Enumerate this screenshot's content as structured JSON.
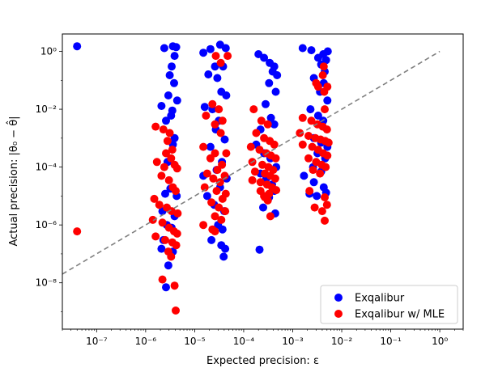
{
  "chart_data": {
    "type": "scatter",
    "xlabel": "Expected precision: ε",
    "ylabel": "Actual precision: |θ₀ − θ̂|",
    "x_scale": "log",
    "y_scale": "log",
    "xlim": [
      2e-08,
      3
    ],
    "ylim": [
      2.5e-10,
      4
    ],
    "x_ticks": [
      {
        "value": 1e-07,
        "label": "10⁻⁷"
      },
      {
        "value": 1e-06,
        "label": "10⁻⁶"
      },
      {
        "value": 1e-05,
        "label": "10⁻⁵"
      },
      {
        "value": 0.0001,
        "label": "10⁻⁴"
      },
      {
        "value": 0.001,
        "label": "10⁻³"
      },
      {
        "value": 0.01,
        "label": "10⁻²"
      },
      {
        "value": 0.1,
        "label": "10⁻¹"
      },
      {
        "value": 1,
        "label": "10⁰"
      }
    ],
    "y_ticks": [
      {
        "value": 1e-08,
        "label": "10⁻⁸"
      },
      {
        "value": 1e-06,
        "label": "10⁻⁶"
      },
      {
        "value": 0.0001,
        "label": "10⁻⁴"
      },
      {
        "value": 0.01,
        "label": "10⁻²"
      },
      {
        "value": 1,
        "label": "10⁰"
      }
    ],
    "grid": false,
    "legend_position": "bottom-right",
    "reference_line": {
      "style": "dashed",
      "color": "#808080",
      "from": [
        2e-08,
        2e-08
      ],
      "to": [
        1,
        1
      ]
    },
    "series": [
      {
        "name": "Exqalibur",
        "color": "#0000ff",
        "points": [
          [
            4e-08,
            1.5
          ],
          [
            3.6e-06,
            1.5
          ],
          [
            2.4e-06,
            1.3
          ],
          [
            4.2e-06,
            1.4
          ],
          [
            3.9e-06,
            0.7
          ],
          [
            3.4e-06,
            0.3
          ],
          [
            3.1e-06,
            0.15
          ],
          [
            3.8e-06,
            0.08
          ],
          [
            2.9e-06,
            0.03
          ],
          [
            4.4e-06,
            0.02
          ],
          [
            2.1e-06,
            0.013
          ],
          [
            3.5e-06,
            0.009
          ],
          [
            3.3e-06,
            0.006
          ],
          [
            2.6e-06,
            0.004
          ],
          [
            3.9e-06,
            0.001
          ],
          [
            3.6e-06,
            0.0006
          ],
          [
            2.8e-06,
            0.00015
          ],
          [
            3.2e-06,
            1.8e-05
          ],
          [
            2.5e-06,
            1.2e-05
          ],
          [
            4.3e-06,
            1e-05
          ],
          [
            2.2e-06,
            3e-06
          ],
          [
            3.9e-06,
            2e-06
          ],
          [
            2.7e-06,
            1e-06
          ],
          [
            3.4e-06,
            8e-07
          ],
          [
            2.3e-06,
            3e-07
          ],
          [
            2.1e-06,
            1.5e-07
          ],
          [
            3.6e-06,
            1.2e-07
          ],
          [
            2.9e-06,
            4e-08
          ],
          [
            2.6e-06,
            7e-09
          ],
          [
            1.5e-05,
            0.9
          ],
          [
            3.3e-05,
            1.7
          ],
          [
            4.3e-05,
            1.3
          ],
          [
            2.1e-05,
            1.2
          ],
          [
            2.6e-05,
            0.3
          ],
          [
            3.8e-05,
            0.3
          ],
          [
            1.9e-05,
            0.16
          ],
          [
            2.9e-05,
            0.12
          ],
          [
            3.5e-05,
            0.04
          ],
          [
            4.4e-05,
            0.03
          ],
          [
            2.3e-05,
            0.01
          ],
          [
            1.6e-05,
            0.012
          ],
          [
            3.1e-05,
            0.004
          ],
          [
            2.7e-05,
            0.002
          ],
          [
            4.1e-05,
            0.0009
          ],
          [
            2.1e-05,
            0.0005
          ],
          [
            3.6e-05,
            0.00015
          ],
          [
            2.8e-05,
            8e-05
          ],
          [
            1.5e-05,
            5e-05
          ],
          [
            4.5e-05,
            4e-05
          ],
          [
            3.3e-05,
            2e-05
          ],
          [
            1.8e-05,
            1e-05
          ],
          [
            2.5e-05,
            5e-06
          ],
          [
            4e-05,
            3e-06
          ],
          [
            3e-05,
            1e-06
          ],
          [
            3.7e-05,
            7e-07
          ],
          [
            2.2e-05,
            3e-07
          ],
          [
            3.5e-05,
            2e-07
          ],
          [
            4.2e-05,
            1.5e-07
          ],
          [
            3.9e-05,
            8e-08
          ],
          [
            0.0002,
            0.8
          ],
          [
            0.00026,
            0.6
          ],
          [
            0.00034,
            0.4
          ],
          [
            0.00042,
            0.3
          ],
          [
            0.00039,
            0.2
          ],
          [
            0.00048,
            0.15
          ],
          [
            0.00033,
            0.08
          ],
          [
            0.00045,
            0.04
          ],
          [
            0.00028,
            0.015
          ],
          [
            0.00036,
            0.005
          ],
          [
            0.00042,
            0.003
          ],
          [
            0.00022,
            0.002
          ],
          [
            0.00018,
            0.0006
          ],
          [
            0.00026,
            0.0003
          ],
          [
            0.00035,
            0.0002
          ],
          [
            0.00046,
            0.0001
          ],
          [
            0.00022,
            6e-05
          ],
          [
            0.00029,
            4e-05
          ],
          [
            0.00038,
            2.5e-05
          ],
          [
            0.00042,
            1.5e-05
          ],
          [
            0.00033,
            9e-06
          ],
          [
            0.00025,
            4e-06
          ],
          [
            0.00044,
            2.5e-06
          ],
          [
            0.00021,
            1.4e-07
          ],
          [
            0.0016,
            1.3
          ],
          [
            0.0024,
            1.1
          ],
          [
            0.0042,
            0.8
          ],
          [
            0.0052,
            1.0
          ],
          [
            0.0033,
            0.6
          ],
          [
            0.0048,
            0.5
          ],
          [
            0.0038,
            0.35
          ],
          [
            0.0045,
            0.2
          ],
          [
            0.0027,
            0.12
          ],
          [
            0.0043,
            0.08
          ],
          [
            0.0036,
            0.04
          ],
          [
            0.0051,
            0.02
          ],
          [
            0.0023,
            0.01
          ],
          [
            0.0033,
            0.006
          ],
          [
            0.0042,
            0.004
          ],
          [
            0.0027,
            0.001
          ],
          [
            0.0038,
            0.0007
          ],
          [
            0.0051,
            0.0005
          ],
          [
            0.0032,
            0.0003
          ],
          [
            0.0046,
            0.0002
          ],
          [
            0.0026,
            0.0001
          ],
          [
            0.0038,
            7e-05
          ],
          [
            0.0017,
            5e-05
          ],
          [
            0.0027,
            3e-05
          ],
          [
            0.0043,
            2e-05
          ],
          [
            0.0031,
            1e-05
          ],
          [
            0.0048,
            1.3e-05
          ],
          [
            0.0022,
            1.2e-05
          ]
        ]
      },
      {
        "name": "Exqalibur w/ MLE",
        "color": "#ff0000",
        "points": [
          [
            4e-08,
            6e-07
          ],
          [
            1.6e-06,
            0.0025
          ],
          [
            2.3e-06,
            0.002
          ],
          [
            3.1e-06,
            0.0015
          ],
          [
            2.8e-06,
            0.0008
          ],
          [
            3.5e-06,
            0.0004
          ],
          [
            2.6e-06,
            0.0003
          ],
          [
            3.3e-06,
            0.0002
          ],
          [
            1.7e-06,
            0.00015
          ],
          [
            2.4e-06,
            0.0001
          ],
          [
            3.9e-06,
            0.00012
          ],
          [
            4.4e-06,
            9e-05
          ],
          [
            2.1e-06,
            5e-05
          ],
          [
            3e-06,
            3.5e-05
          ],
          [
            3.6e-06,
            2e-05
          ],
          [
            4.1e-06,
            1.5e-05
          ],
          [
            1.5e-06,
            8e-06
          ],
          [
            1.9e-06,
            5e-06
          ],
          [
            2.7e-06,
            4e-06
          ],
          [
            3.4e-06,
            3e-06
          ],
          [
            4.5e-06,
            2.5e-06
          ],
          [
            1.4e-06,
            1.5e-06
          ],
          [
            2.2e-06,
            1.2e-06
          ],
          [
            3e-06,
            8e-07
          ],
          [
            3.8e-06,
            6e-07
          ],
          [
            4.4e-06,
            5e-07
          ],
          [
            1.6e-06,
            4e-07
          ],
          [
            2.5e-06,
            3e-07
          ],
          [
            3.5e-06,
            2.5e-07
          ],
          [
            4.2e-06,
            2e-07
          ],
          [
            2.9e-06,
            1.2e-07
          ],
          [
            3.3e-06,
            8e-08
          ],
          [
            2.2e-06,
            1.3e-08
          ],
          [
            3.9e-06,
            8e-09
          ],
          [
            4.1e-06,
            1.1e-09
          ],
          [
            2.7e-05,
            0.7
          ],
          [
            4.7e-05,
            0.7
          ],
          [
            3.4e-05,
            0.4
          ],
          [
            2.3e-05,
            0.015
          ],
          [
            3.1e-05,
            0.01
          ],
          [
            1.7e-05,
            0.006
          ],
          [
            3.7e-05,
            0.004
          ],
          [
            2.6e-05,
            0.003
          ],
          [
            3.4e-05,
            0.0015
          ],
          [
            1.5e-05,
            0.0005
          ],
          [
            2.6e-05,
            0.0003
          ],
          [
            4.4e-05,
            0.0003
          ],
          [
            2.1e-05,
            0.0002
          ],
          [
            3.6e-05,
            0.00012
          ],
          [
            2.9e-05,
            8e-05
          ],
          [
            1.8e-05,
            6e-05
          ],
          [
            4.1e-05,
            5e-05
          ],
          [
            2.4e-05,
            4e-05
          ],
          [
            3.3e-05,
            3e-05
          ],
          [
            1.6e-05,
            2e-05
          ],
          [
            2.8e-05,
            1.5e-05
          ],
          [
            4.3e-05,
            1.2e-05
          ],
          [
            3.7e-05,
            8e-06
          ],
          [
            2.2e-05,
            6e-06
          ],
          [
            3.1e-05,
            4e-06
          ],
          [
            4.2e-05,
            3e-06
          ],
          [
            2.6e-05,
            2e-06
          ],
          [
            3.5e-05,
            1.5e-06
          ],
          [
            1.5e-05,
            1e-06
          ],
          [
            2.3e-05,
            7e-07
          ],
          [
            2.6e-05,
            6e-07
          ],
          [
            0.00016,
            0.01
          ],
          [
            0.00023,
            0.004
          ],
          [
            0.00031,
            0.003
          ],
          [
            0.00018,
            0.0015
          ],
          [
            0.00026,
            0.001
          ],
          [
            0.00034,
            0.0008
          ],
          [
            0.00042,
            0.0006
          ],
          [
            0.00014,
            0.0005
          ],
          [
            0.00021,
            0.0004
          ],
          [
            0.00029,
            0.0003
          ],
          [
            0.00036,
            0.00025
          ],
          [
            0.00045,
            0.0002
          ],
          [
            0.00015,
            0.00015
          ],
          [
            0.00024,
            0.00012
          ],
          [
            0.00032,
            0.0001
          ],
          [
            0.0004,
            8e-05
          ],
          [
            0.00017,
            7e-05
          ],
          [
            0.00027,
            6e-05
          ],
          [
            0.00035,
            5e-05
          ],
          [
            0.00044,
            4e-05
          ],
          [
            0.00015,
            3.5e-05
          ],
          [
            0.00022,
            3e-05
          ],
          [
            0.0003,
            2.5e-05
          ],
          [
            0.00038,
            2e-05
          ],
          [
            0.00046,
            1.6e-05
          ],
          [
            0.00022,
            1.5e-05
          ],
          [
            0.00033,
            1.2e-05
          ],
          [
            0.00026,
            1e-05
          ],
          [
            0.00035,
            2e-06
          ],
          [
            0.00027,
            9e-06
          ],
          [
            0.00031,
            7e-06
          ],
          [
            0.0043,
            0.3
          ],
          [
            0.0041,
            0.15
          ],
          [
            0.003,
            0.08
          ],
          [
            0.0033,
            0.06
          ],
          [
            0.0051,
            0.06
          ],
          [
            0.0044,
            0.04
          ],
          [
            0.0045,
            0.01
          ],
          [
            0.0016,
            0.005
          ],
          [
            0.0024,
            0.004
          ],
          [
            0.0032,
            0.003
          ],
          [
            0.0041,
            0.0025
          ],
          [
            0.005,
            0.002
          ],
          [
            0.0014,
            0.0015
          ],
          [
            0.0021,
            0.0012
          ],
          [
            0.0029,
            0.001
          ],
          [
            0.0037,
            0.0009
          ],
          [
            0.0046,
            0.0008
          ],
          [
            0.0054,
            0.0007
          ],
          [
            0.0016,
            0.0006
          ],
          [
            0.0025,
            0.0005
          ],
          [
            0.0033,
            0.0004
          ],
          [
            0.0042,
            0.0003
          ],
          [
            0.0051,
            0.00025
          ],
          [
            0.0021,
            0.0002
          ],
          [
            0.003,
            0.00015
          ],
          [
            0.0039,
            0.00012
          ],
          [
            0.0047,
            0.0001
          ],
          [
            0.0026,
            8e-05
          ],
          [
            0.0036,
            6e-05
          ],
          [
            0.0022,
            1.5e-05
          ],
          [
            0.0045,
            9e-06
          ],
          [
            0.005,
            5e-06
          ],
          [
            0.004,
            3e-06
          ],
          [
            0.0028,
            4e-06
          ],
          [
            0.0045,
            1.4e-06
          ]
        ]
      }
    ]
  }
}
